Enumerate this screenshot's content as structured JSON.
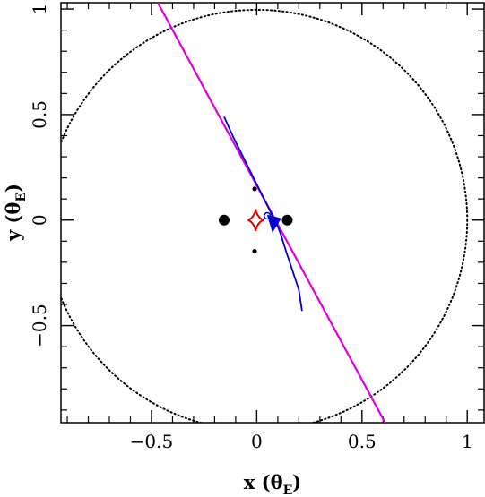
{
  "chart_data": {
    "type": "scatter",
    "title": "",
    "xlabel": "x",
    "xlabel_unit": "θ",
    "xlabel_unit_sub": "E",
    "ylabel": "y",
    "ylabel_unit": "θ",
    "ylabel_unit_sub": "E",
    "xlim": [
      -0.93,
      1.08
    ],
    "ylim": [
      -0.96,
      1.03
    ],
    "xticks_major": [
      {
        "value": -0.5,
        "label": "−0.5"
      },
      {
        "value": 0,
        "label": "0"
      },
      {
        "value": 0.5,
        "label": "0.5"
      },
      {
        "value": 1,
        "label": "1"
      }
    ],
    "yticks_major": [
      {
        "value": -0.5,
        "label": "−0.5"
      },
      {
        "value": 0,
        "label": "0"
      },
      {
        "value": 0.5,
        "label": "0.5"
      },
      {
        "value": 1,
        "label": "1"
      }
    ],
    "minor_step": 0.1,
    "grid": false,
    "einstein_ring": {
      "cx": 0,
      "cy": 0,
      "r": 1,
      "style": "dotted",
      "color": "#000000"
    },
    "lens_masses": [
      {
        "x": -0.155,
        "y": 0.0,
        "size": "large"
      },
      {
        "x": 0.145,
        "y": 0.0,
        "size": "large"
      }
    ],
    "images": [
      {
        "x": -0.01,
        "y": 0.148,
        "size": "small"
      },
      {
        "x": -0.01,
        "y": -0.148,
        "size": "small"
      }
    ],
    "caustic": {
      "color": "#dd0000",
      "cx": -0.005,
      "cy": 0.0,
      "rx": 0.038,
      "ry": 0.052
    },
    "source_trajectory": {
      "color": "#dd00dd",
      "points": [
        [
          -0.47,
          1.03
        ],
        [
          0.61,
          -0.96
        ]
      ]
    },
    "parallax_trajectory": {
      "color": "#0000cc",
      "points": [
        [
          -0.155,
          0.49
        ],
        [
          -0.11,
          0.39
        ],
        [
          -0.06,
          0.29
        ],
        [
          -0.02,
          0.21
        ],
        [
          0.01,
          0.15
        ],
        [
          0.04,
          0.09
        ],
        [
          0.07,
          0.03
        ],
        [
          0.085,
          0.0
        ],
        [
          0.1,
          -0.03
        ],
        [
          0.115,
          -0.07
        ],
        [
          0.14,
          -0.15
        ],
        [
          0.17,
          -0.24
        ],
        [
          0.2,
          -0.33
        ],
        [
          0.215,
          -0.43
        ]
      ],
      "source_marker": {
        "x": 0.1,
        "y": 0.0
      },
      "small_circle": {
        "x": 0.05,
        "y": 0.02
      }
    },
    "colors": {
      "axes": "#000000",
      "masses": "#000000"
    }
  }
}
